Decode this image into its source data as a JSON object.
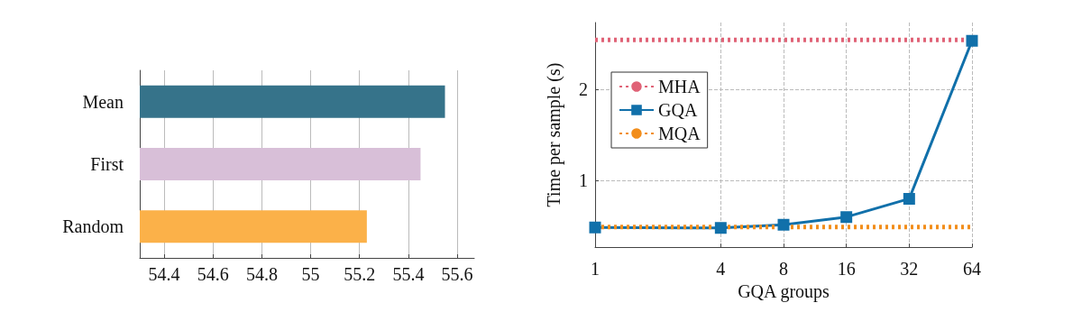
{
  "chart_data": [
    {
      "type": "bar",
      "orientation": "horizontal",
      "categories": [
        "Mean",
        "First",
        "Random"
      ],
      "values": [
        55.55,
        55.45,
        55.23
      ],
      "colors": [
        "#36738a",
        "#d8bfd8",
        "#fbb149"
      ],
      "xlim": [
        54.3,
        55.67
      ],
      "xticks": [
        54.4,
        54.6,
        54.8,
        55,
        55.2,
        55.4,
        55.6
      ],
      "grid": "x"
    },
    {
      "type": "line",
      "xlabel": "GQA groups",
      "ylabel": "Time per sample (s)",
      "log": "x",
      "xlim": [
        1,
        64
      ],
      "xticks": [
        1,
        4,
        8,
        16,
        32,
        64
      ],
      "ylim": [
        0.27,
        2.73
      ],
      "yticks": [
        1,
        2
      ],
      "grid": true,
      "legend": "top left",
      "series": [
        {
          "name": "MHA",
          "color": "#e06377",
          "x": [
            1,
            4,
            8,
            16,
            32,
            64
          ],
          "values": [
            2.54,
            2.54,
            2.54,
            2.54,
            2.54,
            2.54
          ],
          "line_style": "dotted",
          "marker": "none"
        },
        {
          "name": "GQA",
          "color": "#1170aa",
          "x": [
            1,
            4,
            8,
            16,
            32,
            64
          ],
          "values": [
            0.485,
            0.48,
            0.515,
            0.6,
            0.8,
            2.53
          ],
          "line_style": "solid",
          "marker": "square"
        },
        {
          "name": "MQA",
          "color": "#f28e1c",
          "x": [
            1,
            4,
            8,
            16,
            32,
            64
          ],
          "values": [
            0.49,
            0.49,
            0.49,
            0.49,
            0.49,
            0.49
          ],
          "line_style": "dotted",
          "marker": "none"
        }
      ]
    }
  ]
}
